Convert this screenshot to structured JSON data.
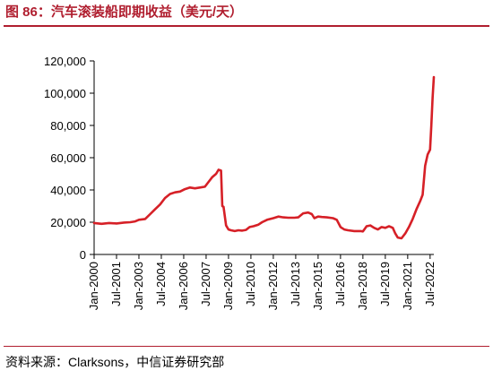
{
  "title": "图 86：汽车滚装船即期收益（美元/天）",
  "source": "资料来源：Clarksons，中信证券研究部",
  "colors": {
    "accent": "#b01e2f",
    "line": "#d62027",
    "axis": "#000000"
  },
  "chart_data": {
    "type": "line",
    "title": "",
    "xlabel": "",
    "ylabel": "",
    "x_range": [
      "2000-01",
      "2022-10"
    ],
    "ylim": [
      0,
      120000
    ],
    "yticks": [
      {
        "value": 0,
        "label": "0"
      },
      {
        "value": 20000,
        "label": "20,000"
      },
      {
        "value": 40000,
        "label": "40,000"
      },
      {
        "value": 60000,
        "label": "60,000"
      },
      {
        "value": 80000,
        "label": "80,000"
      },
      {
        "value": 100000,
        "label": "100,000"
      },
      {
        "value": 120000,
        "label": "120,000"
      }
    ],
    "xticks": [
      {
        "date": "2000-01",
        "label": "Jan-2000"
      },
      {
        "date": "2001-07",
        "label": "Jul-2001"
      },
      {
        "date": "2003-01",
        "label": "Jan-2003"
      },
      {
        "date": "2004-07",
        "label": "Jul-2004"
      },
      {
        "date": "2006-01",
        "label": "Jan-2006"
      },
      {
        "date": "2007-07",
        "label": "Jul-2007"
      },
      {
        "date": "2009-01",
        "label": "Jan-2009"
      },
      {
        "date": "2010-07",
        "label": "Jul-2010"
      },
      {
        "date": "2012-01",
        "label": "Jan-2012"
      },
      {
        "date": "2013-07",
        "label": "Jul-2013"
      },
      {
        "date": "2015-01",
        "label": "Jan-2015"
      },
      {
        "date": "2016-07",
        "label": "Jul-2016"
      },
      {
        "date": "2018-01",
        "label": "Jan-2018"
      },
      {
        "date": "2019-07",
        "label": "Jul-2019"
      },
      {
        "date": "2021-01",
        "label": "Jan-2021"
      },
      {
        "date": "2022-07",
        "label": "Jul-2022"
      }
    ],
    "grid": false,
    "legend": "none",
    "series": [
      {
        "points": [
          [
            "2000-01",
            19500
          ],
          [
            "2000-07",
            19000
          ],
          [
            "2001-01",
            19500
          ],
          [
            "2001-07",
            19200
          ],
          [
            "2002-01",
            19800
          ],
          [
            "2002-06",
            20000
          ],
          [
            "2002-10",
            20500
          ],
          [
            "2003-01",
            21500
          ],
          [
            "2003-06",
            22000
          ],
          [
            "2003-10",
            25000
          ],
          [
            "2004-02",
            28000
          ],
          [
            "2004-06",
            31000
          ],
          [
            "2004-10",
            35000
          ],
          [
            "2005-02",
            37500
          ],
          [
            "2005-06",
            38500
          ],
          [
            "2005-10",
            39000
          ],
          [
            "2006-02",
            40500
          ],
          [
            "2006-06",
            41500
          ],
          [
            "2006-10",
            41000
          ],
          [
            "2007-02",
            41500
          ],
          [
            "2007-06",
            42000
          ],
          [
            "2007-09",
            45000
          ],
          [
            "2007-12",
            48000
          ],
          [
            "2008-03",
            50000
          ],
          [
            "2008-05",
            52500
          ],
          [
            "2008-07",
            52000
          ],
          [
            "2008-08",
            30000
          ],
          [
            "2008-09",
            29500
          ],
          [
            "2008-11",
            18000
          ],
          [
            "2009-01",
            15500
          ],
          [
            "2009-03",
            15000
          ],
          [
            "2009-06",
            14500
          ],
          [
            "2009-09",
            15000
          ],
          [
            "2009-12",
            14800
          ],
          [
            "2010-03",
            15200
          ],
          [
            "2010-06",
            17000
          ],
          [
            "2010-09",
            17500
          ],
          [
            "2011-01",
            18500
          ],
          [
            "2011-04",
            20000
          ],
          [
            "2011-08",
            21500
          ],
          [
            "2012-01",
            22500
          ],
          [
            "2012-05",
            23500
          ],
          [
            "2012-09",
            23000
          ],
          [
            "2013-01",
            22800
          ],
          [
            "2013-06",
            22800
          ],
          [
            "2013-09",
            23000
          ],
          [
            "2014-01",
            25500
          ],
          [
            "2014-05",
            26000
          ],
          [
            "2014-08",
            25000
          ],
          [
            "2014-10",
            22500
          ],
          [
            "2015-01",
            23500
          ],
          [
            "2015-04",
            23200
          ],
          [
            "2015-08",
            23000
          ],
          [
            "2016-01",
            22500
          ],
          [
            "2016-04",
            21500
          ],
          [
            "2016-07",
            17000
          ],
          [
            "2016-10",
            15500
          ],
          [
            "2017-01",
            15000
          ],
          [
            "2017-06",
            14500
          ],
          [
            "2017-11",
            14500
          ],
          [
            "2018-01",
            14300
          ],
          [
            "2018-04",
            17500
          ],
          [
            "2018-07",
            18000
          ],
          [
            "2018-10",
            16500
          ],
          [
            "2019-01",
            15500
          ],
          [
            "2019-04",
            17000
          ],
          [
            "2019-07",
            16500
          ],
          [
            "2019-10",
            17500
          ],
          [
            "2020-01",
            16500
          ],
          [
            "2020-03",
            13000
          ],
          [
            "2020-05",
            10500
          ],
          [
            "2020-08",
            10000
          ],
          [
            "2020-11",
            13000
          ],
          [
            "2021-02",
            17000
          ],
          [
            "2021-05",
            22000
          ],
          [
            "2021-08",
            28000
          ],
          [
            "2021-11",
            33000
          ],
          [
            "2022-01",
            37000
          ],
          [
            "2022-03",
            55000
          ],
          [
            "2022-05",
            62000
          ],
          [
            "2022-07",
            65000
          ],
          [
            "2022-08",
            80000
          ],
          [
            "2022-09",
            97000
          ],
          [
            "2022-10",
            110000
          ]
        ]
      }
    ]
  }
}
